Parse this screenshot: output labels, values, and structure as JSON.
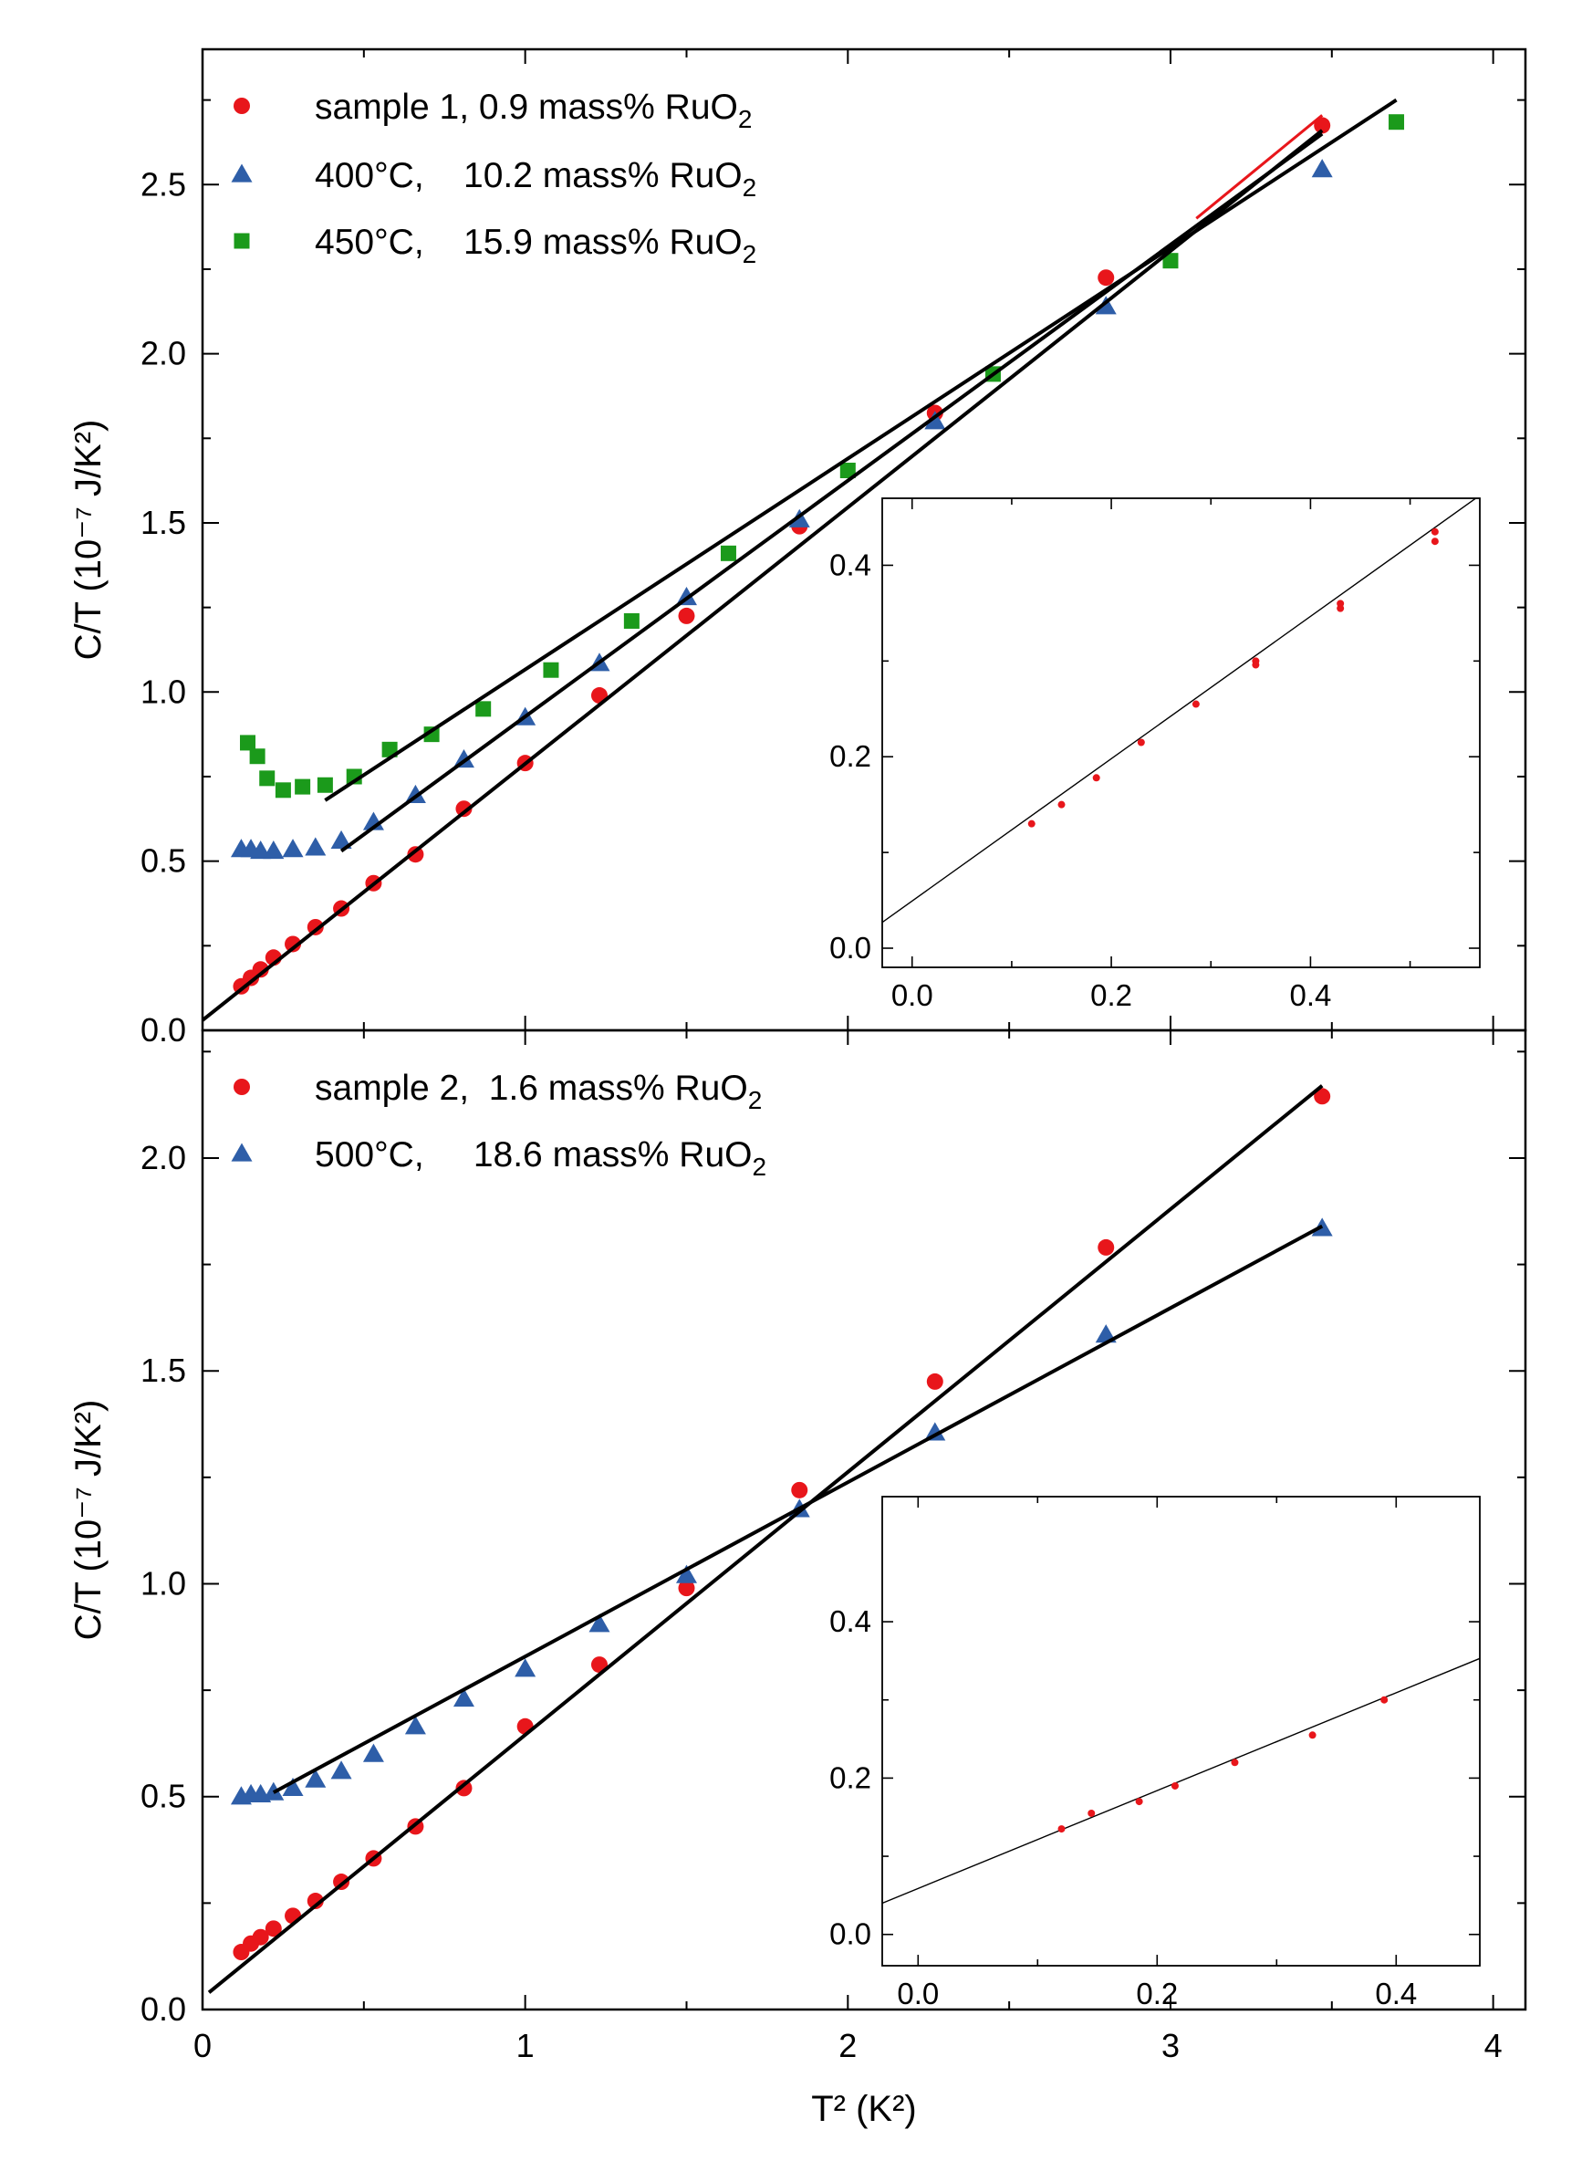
{
  "chart_data": [
    {
      "type": "scatter",
      "title": "",
      "xlabel": "T² (K²)",
      "ylabel": "C/T (10⁻⁷ J/K²)",
      "xlim": [
        0,
        4.1
      ],
      "ylim": [
        0,
        2.9
      ],
      "yticks": [
        0.0,
        0.5,
        1.0,
        1.5,
        2.0,
        2.5
      ],
      "ytick_labels": [
        "0.0",
        "0.5",
        "1.0",
        "1.5",
        "2.0",
        "2.5"
      ],
      "legend_position": "top-left",
      "series": [
        {
          "name": "sample 1, 0.9 mass% RuO2",
          "legend_label": "sample 1, 0.9 mass% RuO",
          "legend_subscript": "2",
          "marker": "circle",
          "color": "#e8161b",
          "x": [
            0.12,
            0.15,
            0.18,
            0.22,
            0.28,
            0.35,
            0.43,
            0.53,
            0.66,
            0.81,
            1.0,
            1.23,
            1.5,
            1.85,
            2.27,
            2.8,
            3.47
          ],
          "y": [
            0.13,
            0.155,
            0.18,
            0.215,
            0.255,
            0.305,
            0.36,
            0.435,
            0.52,
            0.655,
            0.79,
            0.99,
            1.225,
            1.49,
            1.825,
            2.225,
            2.675
          ],
          "fit": {
            "x": [
              0,
              3.47
            ],
            "y": [
              0.03,
              2.66
            ]
          },
          "fit_extra": {
            "color": "#e8161b",
            "x": [
              3.08,
              3.47
            ],
            "y": [
              2.4,
              2.705
            ]
          }
        },
        {
          "name": "400°C, 10.2 mass% RuO2",
          "legend_label": "400°C,    10.2 mass% RuO",
          "legend_subscript": "2",
          "marker": "triangle",
          "color": "#2e5ea8",
          "x": [
            0.12,
            0.15,
            0.18,
            0.22,
            0.28,
            0.35,
            0.43,
            0.53,
            0.66,
            0.81,
            1.0,
            1.23,
            1.5,
            1.85,
            2.27,
            2.8,
            3.47
          ],
          "y": [
            0.535,
            0.535,
            0.53,
            0.53,
            0.535,
            0.54,
            0.56,
            0.615,
            0.695,
            0.8,
            0.925,
            1.085,
            1.28,
            1.51,
            1.8,
            2.14,
            2.545
          ],
          "fit": {
            "x": [
              0.43,
              3.47
            ],
            "y": [
              0.53,
              2.65
            ]
          }
        },
        {
          "name": "450°C, 15.9 mass% RuO2",
          "legend_label": "450°C,    15.9 mass% RuO",
          "legend_subscript": "2",
          "marker": "square",
          "color": "#1b9a1b",
          "x": [
            0.14,
            0.17,
            0.2,
            0.25,
            0.31,
            0.38,
            0.47,
            0.58,
            0.71,
            0.87,
            1.08,
            1.33,
            1.63,
            2.0,
            2.45,
            3.0,
            3.7
          ],
          "y": [
            0.85,
            0.81,
            0.745,
            0.71,
            0.72,
            0.725,
            0.75,
            0.83,
            0.875,
            0.95,
            1.065,
            1.21,
            1.41,
            1.655,
            1.94,
            2.275,
            2.685
          ],
          "fit": {
            "x": [
              0.38,
              3.7
            ],
            "y": [
              0.68,
              2.75
            ]
          }
        }
      ],
      "inset": {
        "type": "scatter",
        "xlim": [
          -0.03,
          0.57
        ],
        "ylim": [
          -0.02,
          0.47
        ],
        "xticks": [
          0.0,
          0.2,
          0.4
        ],
        "xtick_labels": [
          "0.0",
          "0.2",
          "0.4"
        ],
        "yticks": [
          0.0,
          0.2,
          0.4
        ],
        "ytick_labels": [
          "0.0",
          "0.2",
          "0.4"
        ],
        "series": [
          {
            "name": "sample 1, 0.9 mass% RuO2",
            "marker": "circle",
            "color": "#e8161b",
            "x": [
              0.12,
              0.15,
              0.185,
              0.23,
              0.285,
              0.345,
              0.345,
              0.43,
              0.43,
              0.525,
              0.525
            ],
            "y": [
              0.13,
              0.15,
              0.178,
              0.215,
              0.255,
              0.3,
              0.296,
              0.36,
              0.355,
              0.435,
              0.425
            ],
            "fit": {
              "x": [
                -0.03,
                0.57
              ],
              "y": [
                0.027,
                0.473
              ]
            }
          }
        ]
      }
    },
    {
      "type": "scatter",
      "title": "",
      "xlabel": "T² (K²)",
      "ylabel": "C/T (10⁻⁷ J/K²)",
      "xlim": [
        0,
        4.1
      ],
      "ylim": [
        0,
        2.3
      ],
      "xticks": [
        0,
        1,
        2,
        3,
        4
      ],
      "xtick_labels": [
        "0",
        "1",
        "2",
        "3",
        "4"
      ],
      "yticks": [
        0.0,
        0.5,
        1.0,
        1.5,
        2.0
      ],
      "ytick_labels": [
        "0.0",
        "0.5",
        "1.0",
        "1.5",
        "2.0"
      ],
      "legend_position": "top-left",
      "series": [
        {
          "name": "sample 2, 1.6 mass% RuO2",
          "legend_label": "sample 2,  1.6 mass% RuO",
          "legend_subscript": "2",
          "marker": "circle",
          "color": "#e8161b",
          "x": [
            0.12,
            0.15,
            0.18,
            0.22,
            0.28,
            0.35,
            0.43,
            0.53,
            0.66,
            0.81,
            1.0,
            1.23,
            1.5,
            1.85,
            2.27,
            2.8,
            3.47
          ],
          "y": [
            0.135,
            0.155,
            0.17,
            0.19,
            0.22,
            0.255,
            0.3,
            0.355,
            0.43,
            0.52,
            0.665,
            0.81,
            0.99,
            1.22,
            1.475,
            1.79,
            2.145
          ],
          "fit": {
            "x": [
              0.02,
              3.47
            ],
            "y": [
              0.04,
              2.17
            ]
          }
        },
        {
          "name": "500°C, 18.6 mass% RuO2",
          "legend_label": "500°C,     18.6 mass% RuO",
          "legend_subscript": "2",
          "marker": "triangle",
          "color": "#2e5ea8",
          "x": [
            0.12,
            0.15,
            0.18,
            0.22,
            0.28,
            0.35,
            0.43,
            0.53,
            0.66,
            0.81,
            1.0,
            1.23,
            1.5,
            1.85,
            2.27,
            2.8,
            3.47
          ],
          "y": [
            0.5,
            0.505,
            0.505,
            0.51,
            0.52,
            0.54,
            0.56,
            0.6,
            0.665,
            0.73,
            0.8,
            0.905,
            1.02,
            1.175,
            1.355,
            1.585,
            1.835
          ],
          "fit": {
            "x": [
              0.22,
              3.47
            ],
            "y": [
              0.51,
              1.84
            ]
          }
        }
      ],
      "inset": {
        "type": "scatter",
        "xlim": [
          -0.03,
          0.47
        ],
        "ylim": [
          -0.04,
          0.56
        ],
        "xticks": [
          0.0,
          0.2,
          0.4
        ],
        "xtick_labels": [
          "0.0",
          "0.2",
          "0.4"
        ],
        "yticks": [
          0.0,
          0.2,
          0.4
        ],
        "ytick_labels": [
          "0.0",
          "0.2",
          "0.4"
        ],
        "series": [
          {
            "name": "sample 2, 1.6 mass% RuO2",
            "marker": "circle",
            "color": "#e8161b",
            "x": [
              0.12,
              0.145,
              0.185,
              0.215,
              0.265,
              0.33,
              0.39
            ],
            "y": [
              0.135,
              0.155,
              0.17,
              0.19,
              0.22,
              0.255,
              0.3
            ],
            "fit": {
              "x": [
                -0.03,
                0.47
              ],
              "y": [
                0.04,
                0.353
              ]
            }
          }
        ]
      }
    }
  ]
}
